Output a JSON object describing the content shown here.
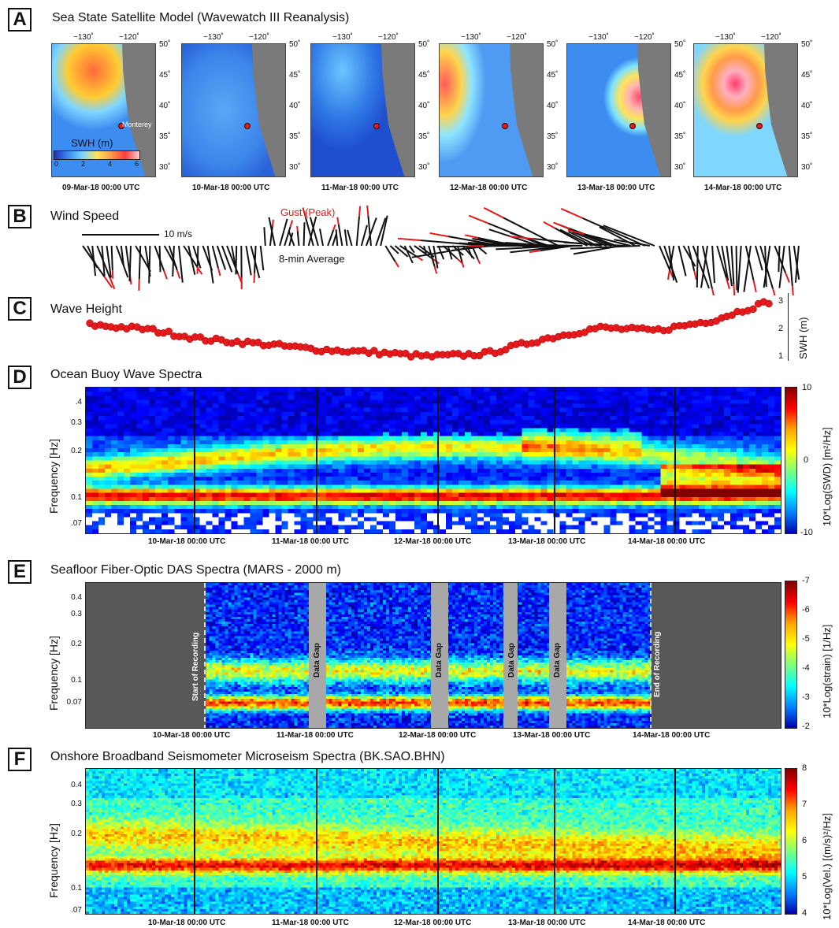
{
  "panels": {
    "A": {
      "letter": "A",
      "title": "Sea State Satellite Model (Wavewatch III Reanalysis)",
      "lon_labels": [
        "−130˚",
        "−120˚"
      ],
      "lat_labels": [
        "50˚",
        "45˚",
        "40˚",
        "35˚",
        "30˚"
      ],
      "maps": [
        {
          "date": "09-Mar-18 00:00 UTC"
        },
        {
          "date": "10-Mar-18 00:00 UTC"
        },
        {
          "date": "11-Mar-18 00:00 UTC"
        },
        {
          "date": "12-Mar-18 00:00 UTC"
        },
        {
          "date": "13-Mar-18 00:00 UTC"
        },
        {
          "date": "14-Mar-18 00:00 UTC"
        }
      ],
      "legend_title": "SWH (m)",
      "legend_ticks": [
        "0",
        "2",
        "4",
        "6"
      ],
      "site_label": "Monterey"
    },
    "B": {
      "letter": "B",
      "title": "Wind Speed",
      "gust_label": "Gust (Peak)",
      "scale_label": "10 m/s",
      "avg_label": "8-min Average"
    },
    "C": {
      "letter": "C",
      "title": "Wave Height",
      "ylabel": "SWH (m)",
      "yticks": [
        "3",
        "2",
        "1"
      ]
    },
    "D": {
      "letter": "D",
      "title": "Ocean Buoy Wave Spectra",
      "ylabel": "Frequency [Hz]",
      "yticks": [
        ".4",
        "0.3",
        "0.2",
        "0.1",
        ".07"
      ],
      "cbar_label": "10*Log(SWD) [m²/Hz]",
      "cbar_ticks": [
        "10",
        "0",
        "-10"
      ]
    },
    "E": {
      "letter": "E",
      "title": "Seafloor Fiber-Optic DAS Spectra (MARS - 2000 m)",
      "ylabel": "Frequency [Hz]",
      "yticks": [
        "0.4",
        "0.3",
        "0.2",
        "0.1",
        "0.07"
      ],
      "cbar_label": "10*Log(strain) [1/Hz]",
      "cbar_ticks": [
        "-7",
        "-6",
        "-5",
        "-4",
        "-3",
        "-2"
      ],
      "start_label": "Start of Recording",
      "end_label": "End of Recording",
      "gap_label": "Data Gap"
    },
    "F": {
      "letter": "F",
      "title": "Onshore Broadband Seismometer Microseism Spectra (BK.SAO.BHN)",
      "ylabel": "Frequency [Hz]",
      "yticks": [
        "0.4",
        "0.3",
        "0.2",
        "0.1",
        ".07"
      ],
      "cbar_label": "10*Log(Vel.) [(m/s)²/Hz]",
      "cbar_ticks": [
        "8",
        "7",
        "6",
        "5",
        "4"
      ]
    }
  },
  "date_ticks": [
    "10-Mar-18 00:00 UTC",
    "11-Mar-18 00:00 UTC",
    "12-Mar-18 00:00 UTC",
    "13-Mar-18 00:00 UTC",
    "14-Mar-18 00:00 UTC"
  ],
  "chart_data": {
    "type": "scatter",
    "title": "Wave Height",
    "ylabel": "SWH (m)",
    "ylim": [
      0.8,
      3.2
    ],
    "x": [
      "09-Mar-18 00:00",
      "09-Mar-18 12:00",
      "10-Mar-18 00:00",
      "10-Mar-18 12:00",
      "11-Mar-18 00:00",
      "11-Mar-18 12:00",
      "12-Mar-18 00:00",
      "12-Mar-18 12:00",
      "13-Mar-18 00:00",
      "13-Mar-18 12:00",
      "14-Mar-18 00:00",
      "14-Mar-18 12:00",
      "15-Mar-18 00:00"
    ],
    "values": [
      2.1,
      1.95,
      1.6,
      1.45,
      1.25,
      1.15,
      1.0,
      1.1,
      1.6,
      2.0,
      1.9,
      2.25,
      2.9
    ]
  },
  "colors": {
    "swh_point": "#e41a1c",
    "gust": "#e41a1c",
    "data_gap": "#a8a8a8",
    "no_data": "#585858"
  }
}
